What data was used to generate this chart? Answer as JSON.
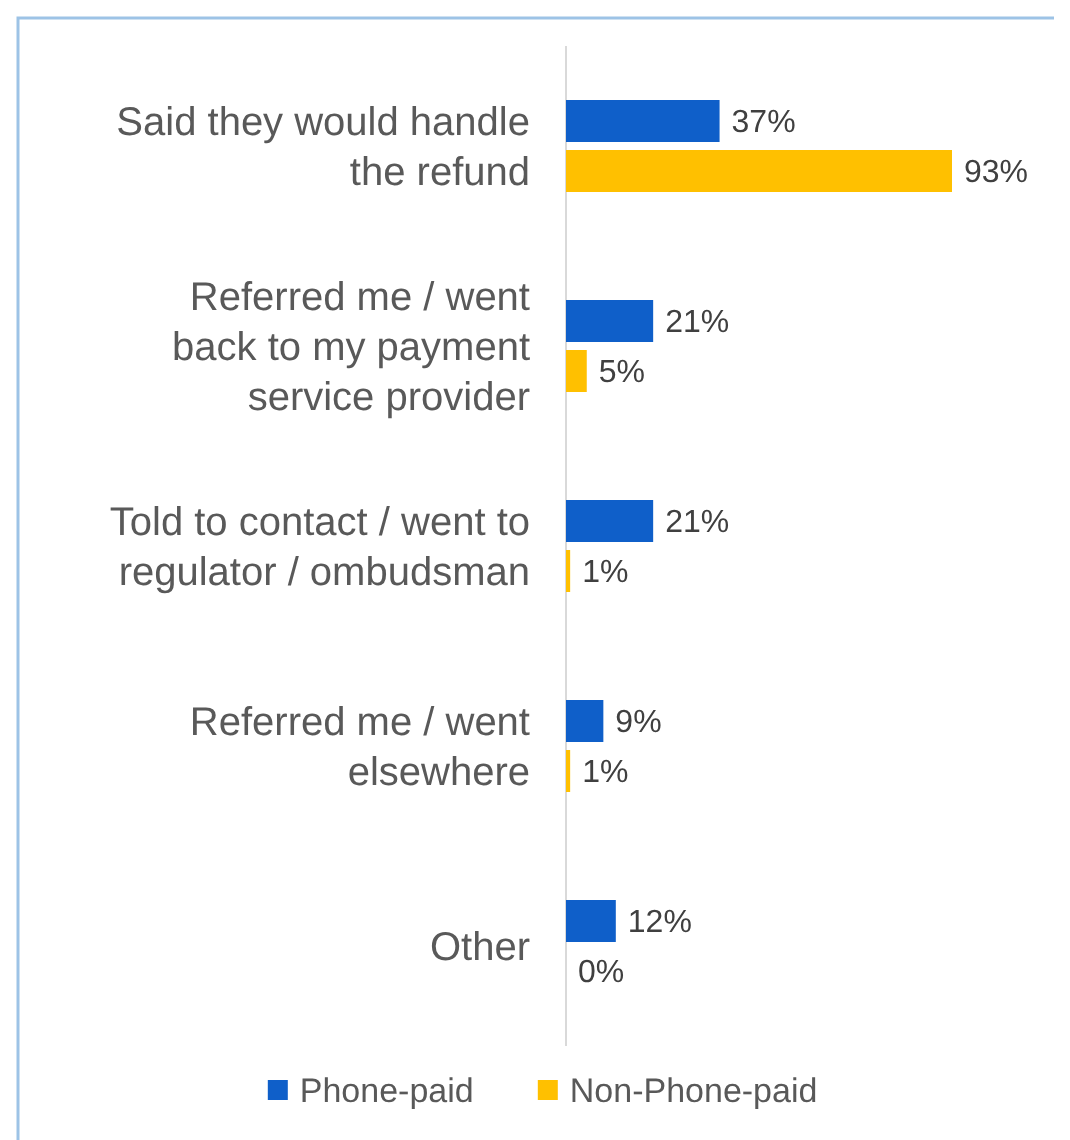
{
  "chart_data": {
    "type": "bar",
    "orientation": "horizontal",
    "categories": [
      "Said they would handle the refund",
      "Referred me / went back to my payment service provider",
      "Told to contact / went to regulator / ombudsman",
      "Referred me / went elsewhere",
      "Other"
    ],
    "series": [
      {
        "name": "Phone-paid",
        "color": "#0f5fc9",
        "values": [
          37,
          21,
          21,
          9,
          12
        ],
        "value_labels": [
          "37%",
          "21%",
          "21%",
          "9%",
          "12%"
        ]
      },
      {
        "name": "Non-Phone-paid",
        "color": "#ffc000",
        "values": [
          93,
          5,
          1,
          1,
          0
        ],
        "value_labels": [
          "93%",
          "5%",
          "1%",
          "1%",
          "0%"
        ]
      }
    ],
    "legend": "bottom"
  }
}
